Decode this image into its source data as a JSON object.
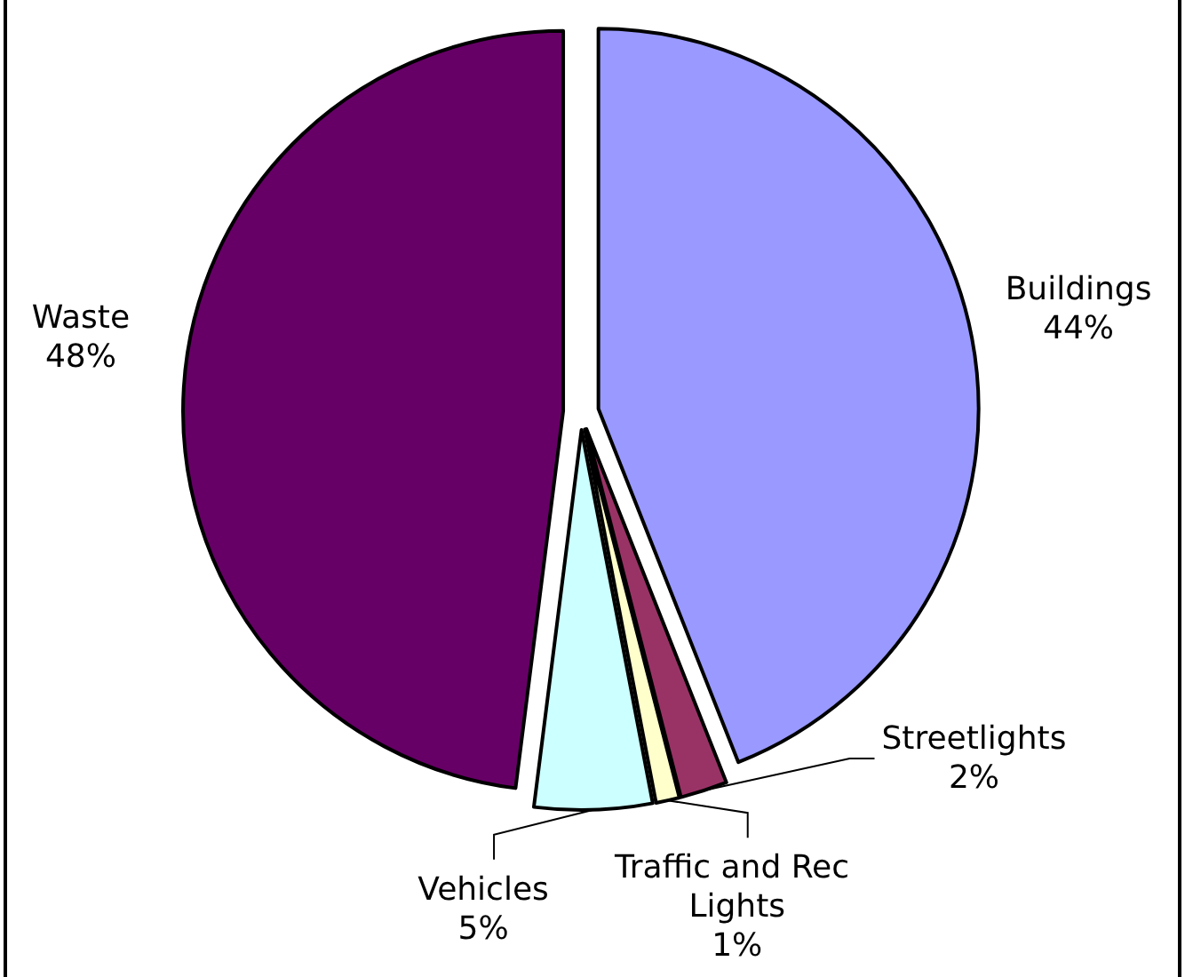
{
  "chart_data": {
    "type": "pie",
    "categories": [
      "Buildings",
      "Streetlights",
      "Traffic and Rec Lights",
      "Vehicles",
      "Waste"
    ],
    "values": [
      44,
      2,
      1,
      5,
      48
    ],
    "colors": [
      "#9999ff",
      "#993366",
      "#ffffcc",
      "#ccffff",
      "#660066"
    ],
    "value_labels": [
      "44%",
      "2%",
      "1%",
      "5%",
      "48%"
    ]
  }
}
